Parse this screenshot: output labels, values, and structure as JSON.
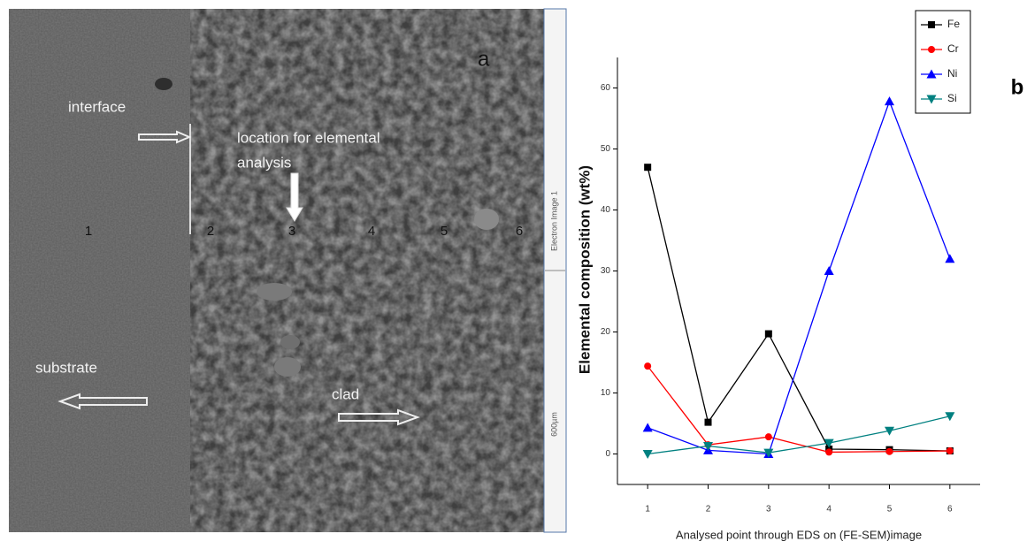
{
  "panel_a": {
    "label": "a",
    "interface_label": "interface",
    "location_label": [
      "location for elemental",
      "analysis"
    ],
    "points": [
      "1",
      "2",
      "3",
      "4",
      "5",
      "6"
    ],
    "substrate_label": "substrate",
    "clad_label": "clad",
    "image_name": "Electron Image 1",
    "scale_label": "600µm"
  },
  "chart_data": {
    "type": "line",
    "panel_label": "b",
    "xlabel": "Analysed point through EDS on (FE-SEM)image",
    "ylabel": "Elemental composition (wt%)",
    "x": [
      1,
      2,
      3,
      4,
      5,
      6
    ],
    "xlim": [
      0.5,
      6.5
    ],
    "xticks": [
      1,
      2,
      3,
      4,
      5,
      6
    ],
    "ylim": [
      -5,
      65
    ],
    "yticks": [
      0,
      10,
      20,
      30,
      40,
      50,
      60
    ],
    "legend": "upper right",
    "series": [
      {
        "name": "Fe",
        "color": "#000000",
        "marker": "square",
        "values": [
          47,
          5.2,
          19.7,
          0.8,
          0.7,
          0.5
        ]
      },
      {
        "name": "Cr",
        "color": "#ff0000",
        "marker": "circle",
        "values": [
          14.4,
          1.5,
          2.8,
          0.3,
          0.4,
          0.5
        ]
      },
      {
        "name": "Ni",
        "color": "#0000ff",
        "marker": "triangle-up",
        "values": [
          4.3,
          0.6,
          0,
          30,
          57.8,
          32
        ]
      },
      {
        "name": "Si",
        "color": "#008080",
        "marker": "triangle-down",
        "values": [
          0,
          1.3,
          0.2,
          1.8,
          3.8,
          6.2
        ]
      }
    ]
  }
}
